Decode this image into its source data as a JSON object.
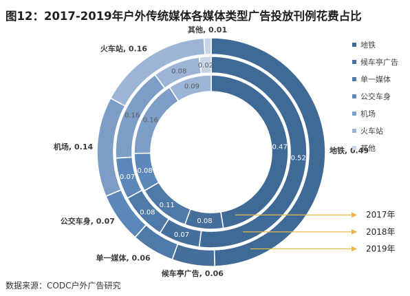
{
  "title": "图12：2017-2019年户外传统媒体各媒体类型广告投放刊例花费占比",
  "source": "数据来源：CODC户外广告研究",
  "chart_data": {
    "type": "doughnut",
    "categories": [
      "地铁",
      "候车亭广告",
      "单一媒体",
      "公交车身",
      "机场",
      "火车站",
      "其他"
    ],
    "colors": [
      "#3f6a96",
      "#466f9b",
      "#4f79a6",
      "#5b88b8",
      "#7b9dc6",
      "#9cb4d5",
      "#c6d4e6"
    ],
    "series": [
      {
        "name": "2017年",
        "values": [
          0.47,
          0.08,
          0.11,
          0.08,
          0.16,
          0.09,
          null
        ]
      },
      {
        "name": "2018年",
        "values": [
          0.52,
          0.07,
          0.08,
          0.07,
          0.16,
          0.08,
          0.02
        ]
      },
      {
        "name": "2019年",
        "values": [
          0.49,
          0.06,
          0.06,
          0.07,
          0.14,
          0.16,
          0.01
        ]
      }
    ],
    "ring_value_labels": {
      "2017年": [
        "0.47",
        "0.08",
        "0.11",
        "0.08",
        "0.16",
        "0.09",
        ""
      ],
      "2018年": [
        "0.52",
        "0.07",
        "0.08",
        "0.07",
        "0.16",
        "0.08",
        "0.02"
      ]
    },
    "outer_labels": [
      "地铁, 0.49",
      "候车亭广告, 0.06",
      "单一媒体, 0.06",
      "公交车身, 0.07",
      "机场, 0.14",
      "火车站, 0.16",
      "其他, 0.01"
    ],
    "legend_position": "right",
    "annotation_color": "#e8b84a"
  }
}
